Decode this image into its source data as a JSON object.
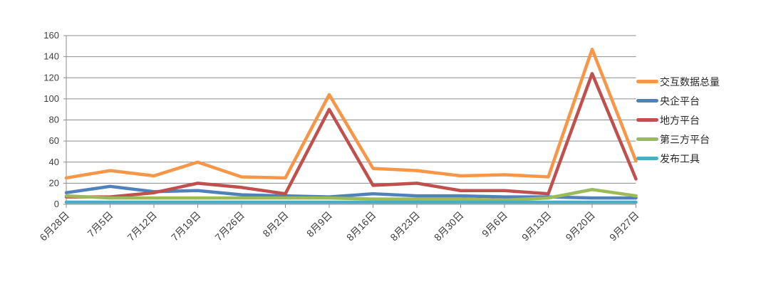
{
  "chart_data": {
    "type": "line",
    "title": "",
    "xlabel": "",
    "ylabel": "",
    "categories": [
      "6月28日",
      "7月5日",
      "7月12日",
      "7月19日",
      "7月26日",
      "8月2日",
      "8月9日",
      "8月16日",
      "8月23日",
      "8月30日",
      "9月6日",
      "9月13日",
      "9月20日",
      "9月27日"
    ],
    "series": [
      {
        "name": "交互数据总量",
        "color": "#F79646",
        "values": [
          25,
          32,
          27,
          40,
          26,
          25,
          104,
          34,
          32,
          27,
          28,
          26,
          147,
          41
        ]
      },
      {
        "name": "央企平台",
        "color": "#4F81BD",
        "values": [
          11,
          17,
          12,
          13,
          9,
          8,
          7,
          10,
          8,
          8,
          7,
          7,
          6,
          6
        ]
      },
      {
        "name": "地方平台",
        "color": "#C0504D",
        "values": [
          7,
          7,
          11,
          20,
          16,
          10,
          90,
          18,
          20,
          13,
          13,
          10,
          124,
          24
        ]
      },
      {
        "name": "第三方平台",
        "color": "#9BBB59",
        "values": [
          8,
          6,
          6,
          6,
          6,
          6,
          6,
          5,
          5,
          5,
          4,
          6,
          14,
          8
        ]
      },
      {
        "name": "发布工具",
        "color": "#4BACC6",
        "values": [
          2,
          2,
          2,
          2,
          2,
          2,
          2,
          2,
          2,
          2,
          2,
          2,
          2,
          2
        ]
      }
    ],
    "ylim": [
      0,
      160
    ],
    "ytick_step": 20,
    "ytick_labels": [
      "0",
      "20",
      "40",
      "60",
      "80",
      "100",
      "120",
      "140",
      "160"
    ],
    "grid": true,
    "legend_position": "right",
    "x_label_rotation": 45,
    "gridline_color": "#8C8C8C",
    "axis_color": "#8C8C8C",
    "tick_label_color": "#3F3F3F"
  }
}
